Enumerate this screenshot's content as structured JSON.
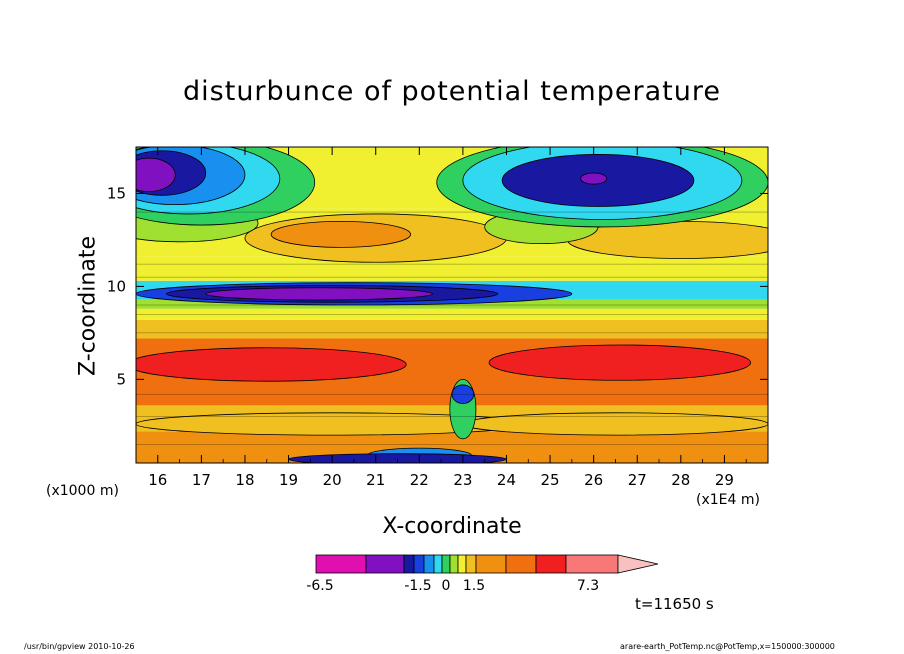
{
  "chart_data": {
    "type": "heatmap",
    "title": "disturbunce of potential temperature",
    "xlabel": "X-coordinate",
    "ylabel": "Z-coordinate",
    "x_unit_note": "(x1E4 m)",
    "y_unit_note": "(x1000 m)",
    "xlim": [
      15.5,
      30
    ],
    "ylim": [
      0.5,
      17.5
    ],
    "x_ticks": [
      16,
      17,
      18,
      19,
      20,
      21,
      22,
      23,
      24,
      25,
      26,
      27,
      28,
      29
    ],
    "y_ticks": [
      5,
      10,
      15
    ],
    "colorbar": {
      "tick_labels": [
        "-6.5",
        "-1.5",
        "0",
        "1.5",
        "7.3"
      ],
      "colors": [
        "#e010b0",
        "#8010c0",
        "#1818a0",
        "#1840e0",
        "#1890f0",
        "#30d8f0",
        "#30d060",
        "#a0e030",
        "#f0f030",
        "#f0c020",
        "#f09010",
        "#f07010",
        "#f02020",
        "#f87878",
        "#f8c0c0"
      ]
    },
    "grid": false
  },
  "annotations": {
    "time": "t=11650 s",
    "footer_left": "/usr/bin/gpview   2010-10-26",
    "footer_right": "arare-earth_PotTemp.nc@PotTemp,x=150000:300000"
  }
}
